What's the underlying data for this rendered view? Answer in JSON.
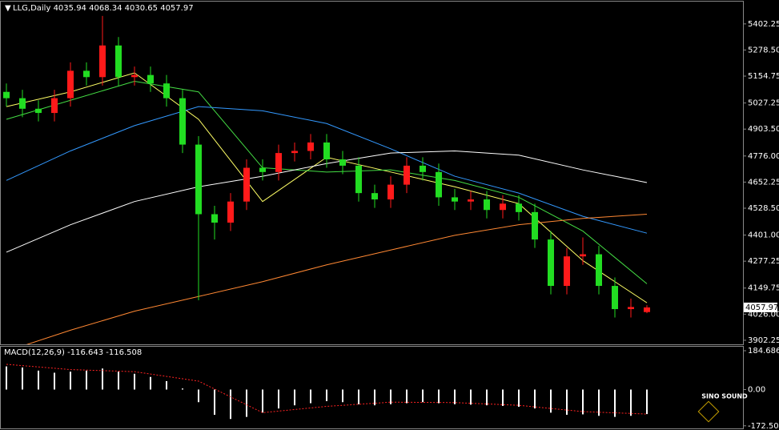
{
  "chart_data": [
    {
      "type": "candlestick",
      "title": "LLG,Daily",
      "open": [
        5080,
        5050,
        5000,
        4980,
        5050,
        5180,
        5150,
        5300,
        5150,
        5160,
        5120,
        5050,
        4830,
        4500,
        4460,
        4560,
        4720,
        4700,
        4790,
        4800,
        4840,
        4760,
        4730,
        4600,
        4570,
        4640,
        4730,
        4700,
        4580,
        4560,
        4570,
        4520,
        4550,
        4510,
        4380,
        4160,
        4300,
        4310,
        4160,
        4050,
        4035.94
      ],
      "high": [
        5120,
        5090,
        5040,
        5090,
        5220,
        5220,
        5440,
        5340,
        5200,
        5200,
        5160,
        5090,
        4870,
        4540,
        4600,
        4760,
        4760,
        4830,
        4840,
        4880,
        4880,
        4800,
        4770,
        4640,
        4680,
        4770,
        4770,
        4740,
        4620,
        4610,
        4610,
        4590,
        4590,
        4550,
        4420,
        4340,
        4390,
        4350,
        4200,
        4100,
        4068.34
      ],
      "low": [
        5010,
        4960,
        4940,
        4940,
        5010,
        5110,
        5110,
        5110,
        5110,
        5080,
        5010,
        4790,
        4092,
        4380,
        4420,
        4520,
        4660,
        4660,
        4750,
        4760,
        4720,
        4690,
        4560,
        4530,
        4530,
        4600,
        4660,
        4540,
        4520,
        4520,
        4480,
        4480,
        4470,
        4340,
        4120,
        4120,
        4260,
        4120,
        4010,
        4010,
        4030.65
      ],
      "close": [
        5050,
        5000,
        4980,
        5050,
        5180,
        5150,
        5300,
        5150,
        5160,
        5120,
        5050,
        4830,
        4500,
        4460,
        4560,
        4720,
        4700,
        4790,
        4800,
        4840,
        4760,
        4730,
        4600,
        4570,
        4640,
        4730,
        4700,
        4580,
        4560,
        4570,
        4520,
        4550,
        4510,
        4380,
        4160,
        4300,
        4310,
        4160,
        4050,
        4060,
        4057.97
      ],
      "up_color": "#ff1a1a",
      "down_color": "#22dd22",
      "ma_x": [
        0,
        4,
        8,
        12,
        16,
        20,
        24,
        28,
        32,
        36,
        40
      ],
      "series": [
        {
          "color": "#ffff66",
          "values": [
            5010,
            5080,
            5170,
            4950,
            4560,
            4770,
            4700,
            4630,
            4550,
            4280,
            4080
          ]
        },
        {
          "color": "#44dd44",
          "values": [
            4950,
            5040,
            5130,
            5080,
            4720,
            4700,
            4710,
            4660,
            4580,
            4420,
            4170
          ]
        },
        {
          "color": "#3399ff",
          "values": [
            4660,
            4800,
            4920,
            5010,
            4990,
            4930,
            4810,
            4680,
            4600,
            4490,
            4410
          ]
        },
        {
          "color": "#ffffff",
          "values": [
            4320,
            4450,
            4560,
            4630,
            4680,
            4740,
            4790,
            4800,
            4780,
            4710,
            4650
          ]
        },
        {
          "color": "#ff8833",
          "values": [
            3850,
            3950,
            4040,
            4110,
            4180,
            4260,
            4330,
            4400,
            4450,
            4480,
            4500
          ]
        }
      ],
      "ylim": [
        3883,
        5508
      ],
      "yticks": [
        {
          "value": 5402.25,
          "label": "5402.25"
        },
        {
          "value": 5278.5,
          "label": "5278.50"
        },
        {
          "value": 5154.75,
          "label": "5154.75"
        },
        {
          "value": 5027.25,
          "label": "5027.25"
        },
        {
          "value": 4903.5,
          "label": "4903.50"
        },
        {
          "value": 4776,
          "label": "4776.00"
        },
        {
          "value": 4652.25,
          "label": "4652.25"
        },
        {
          "value": 4528.5,
          "label": "4528.50"
        },
        {
          "value": 4401,
          "label": "4401.00"
        },
        {
          "value": 4277.25,
          "label": "4277.25"
        },
        {
          "value": 4149.75,
          "label": "4149.75"
        },
        {
          "value": 4026,
          "label": "4026.00"
        },
        {
          "value": 3902.25,
          "label": "3902.25"
        }
      ]
    },
    {
      "type": "bar",
      "title": "MACD(12,26,9)",
      "color": "#ffffff",
      "values": [
        110,
        105,
        90,
        80,
        85,
        90,
        100,
        85,
        75,
        60,
        40,
        5,
        -60,
        -120,
        -140,
        -130,
        -110,
        -90,
        -75,
        -65,
        -55,
        -60,
        -70,
        -75,
        -70,
        -65,
        -60,
        -65,
        -70,
        -72,
        -75,
        -78,
        -82,
        -90,
        -110,
        -120,
        -118,
        -125,
        -130,
        -125,
        -116.643
      ],
      "signal": {
        "color": "#ff2222",
        "x": [
          0,
          4,
          8,
          12,
          16,
          20,
          24,
          28,
          32,
          36,
          40
        ],
        "values": [
          120,
          95,
          85,
          40,
          -110,
          -80,
          -60,
          -62,
          -75,
          -105,
          -116.508
        ]
      },
      "ylim": [
        -184.8,
        203.7
      ],
      "yticks": [
        184.686,
        {
          "value": 0,
          "label": "0.00"
        },
        -172.501
      ]
    }
  ],
  "watermark": "SINO SOUND"
}
